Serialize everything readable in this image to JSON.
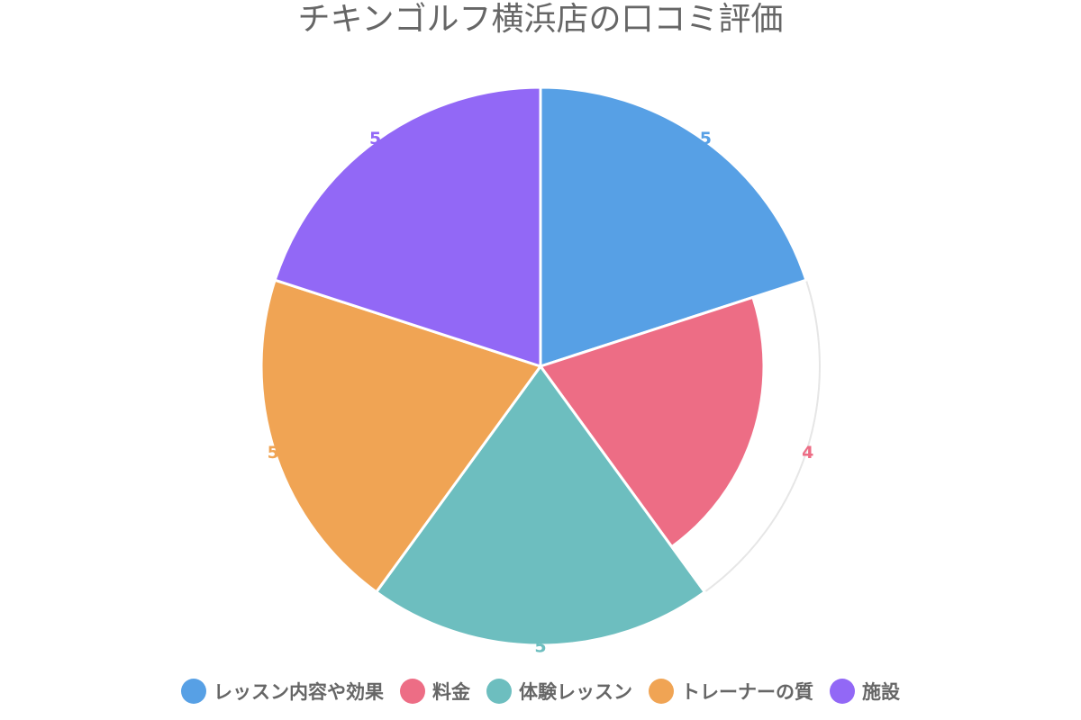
{
  "chart_data": {
    "type": "pie",
    "title": "チキンゴルフ横浜店の口コミ評価",
    "categories": [
      "レッスン内容や効果",
      "料金",
      "体験レッスン",
      "トレーナーの質",
      "施設"
    ],
    "values": [
      5,
      4,
      5,
      5,
      5
    ],
    "max_value": 5,
    "colors": [
      "#57A0E5",
      "#ED6D85",
      "#6DBEBF",
      "#F0A454",
      "#9268F6"
    ],
    "legend_position": "bottom",
    "data_labels": true
  }
}
